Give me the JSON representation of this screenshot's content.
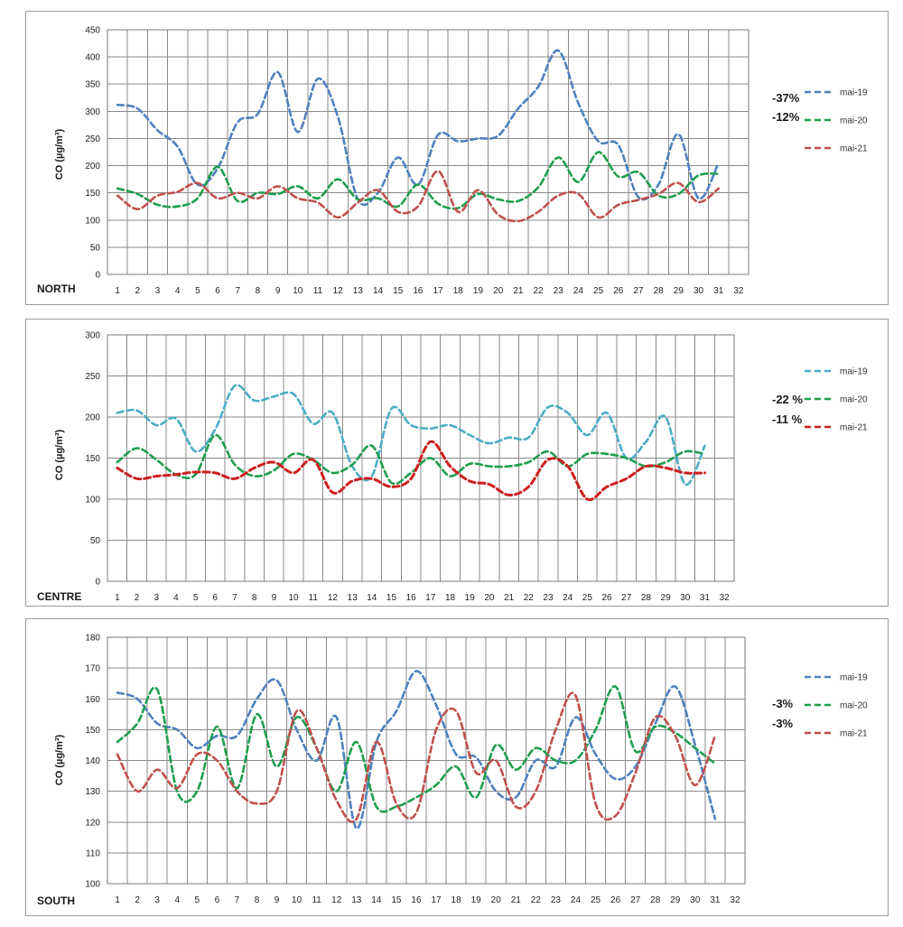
{
  "chart_data": [
    {
      "type": "line",
      "region_label": "NORTH",
      "ylabel": "CO (µg/m³)",
      "ylim": [
        0,
        450
      ],
      "yticks": [
        0,
        50,
        100,
        150,
        200,
        250,
        300,
        350,
        400,
        450
      ],
      "xticks": [
        "1",
        "2",
        "3",
        "4",
        "5",
        "6",
        "7",
        "8",
        "9",
        "10",
        "11",
        "12",
        "13",
        "14",
        "15",
        "16",
        "17",
        "18",
        "19",
        "20",
        "21",
        "22",
        "23",
        "24",
        "25",
        "26",
        "27",
        "28",
        "29",
        "30",
        "31",
        "32"
      ],
      "x": [
        1,
        2,
        3,
        4,
        5,
        6,
        7,
        8,
        9,
        10,
        11,
        12,
        13,
        14,
        15,
        16,
        17,
        18,
        19,
        20,
        21,
        22,
        23,
        24,
        25,
        26,
        27,
        28,
        29,
        30,
        31
      ],
      "legend": [
        "mai-19",
        "mai-20",
        "mai-21"
      ],
      "percent_annotations": [
        "-37%",
        "-12%"
      ],
      "series": [
        {
          "name": "mai-19",
          "color": "#4f81bd",
          "values": [
            312,
            305,
            265,
            235,
            165,
            195,
            280,
            295,
            372,
            262,
            360,
            290,
            138,
            150,
            215,
            165,
            257,
            245,
            250,
            255,
            305,
            345,
            412,
            315,
            245,
            238,
            142,
            165,
            258,
            140,
            205
          ]
        },
        {
          "name": "mai-20",
          "color": "#1f9e4f",
          "values": [
            158,
            148,
            128,
            125,
            140,
            198,
            135,
            150,
            148,
            162,
            140,
            175,
            138,
            140,
            125,
            165,
            130,
            122,
            148,
            138,
            135,
            160,
            215,
            170,
            225,
            180,
            188,
            145,
            148,
            182,
            185
          ]
        },
        {
          "name": "mai-21",
          "color": "#c0504d",
          "values": [
            145,
            120,
            145,
            152,
            168,
            140,
            150,
            140,
            162,
            140,
            132,
            105,
            132,
            155,
            115,
            125,
            190,
            115,
            155,
            110,
            98,
            115,
            145,
            148,
            105,
            128,
            137,
            148,
            168,
            133,
            158
          ]
        }
      ]
    },
    {
      "type": "line",
      "region_label": "CENTRE",
      "ylabel": "CO (µg/m³)",
      "ylim": [
        0,
        300
      ],
      "yticks": [
        0,
        50,
        100,
        150,
        200,
        250,
        300
      ],
      "xticks": [
        "1",
        "2",
        "3",
        "4",
        "5",
        "6",
        "7",
        "8",
        "9",
        "10",
        "11",
        "12",
        "13",
        "14",
        "15",
        "16",
        "17",
        "18",
        "19",
        "20",
        "21",
        "22",
        "23",
        "24",
        "25",
        "26",
        "27",
        "28",
        "29",
        "30",
        "31",
        "32"
      ],
      "x": [
        1,
        2,
        3,
        4,
        5,
        6,
        7,
        8,
        9,
        10,
        11,
        12,
        13,
        14,
        15,
        16,
        17,
        18,
        19,
        20,
        21,
        22,
        23,
        24,
        25,
        26,
        27,
        28,
        29,
        30,
        31
      ],
      "legend": [
        "mai-19",
        "mai-20",
        "mai-21"
      ],
      "percent_annotations": [
        "-22 %",
        "-11 %"
      ],
      "series": [
        {
          "name": "mai-19",
          "color": "#4bacc6",
          "values": [
            205,
            208,
            190,
            198,
            158,
            185,
            238,
            220,
            225,
            228,
            192,
            205,
            140,
            128,
            210,
            190,
            186,
            190,
            178,
            168,
            175,
            175,
            212,
            205,
            178,
            205,
            150,
            170,
            200,
            118,
            165
          ]
        },
        {
          "name": "mai-20",
          "color": "#1f9e4f",
          "values": [
            145,
            162,
            148,
            130,
            130,
            178,
            142,
            128,
            135,
            155,
            148,
            132,
            142,
            165,
            120,
            132,
            150,
            128,
            143,
            140,
            140,
            145,
            158,
            140,
            155,
            155,
            150,
            140,
            145,
            158,
            155
          ]
        },
        {
          "name": "mai-21",
          "color": "#cc1f1f",
          "values": [
            138,
            125,
            128,
            130,
            133,
            132,
            125,
            138,
            145,
            132,
            148,
            108,
            122,
            125,
            115,
            125,
            170,
            140,
            122,
            118,
            105,
            115,
            148,
            140,
            100,
            115,
            125,
            140,
            138,
            132,
            132
          ]
        }
      ]
    },
    {
      "type": "line",
      "region_label": "SOUTH",
      "ylabel": "CO (µg/m³)",
      "ylim": [
        100,
        180
      ],
      "yticks": [
        100,
        110,
        120,
        130,
        140,
        150,
        160,
        170,
        180
      ],
      "xticks": [
        "1",
        "2",
        "3",
        "4",
        "5",
        "6",
        "7",
        "8",
        "9",
        "10",
        "11",
        "12",
        "13",
        "14",
        "15",
        "16",
        "17",
        "18",
        "19",
        "20",
        "21",
        "22",
        "23",
        "24",
        "25",
        "26",
        "27",
        "28",
        "29",
        "30",
        "31",
        "32"
      ],
      "x": [
        1,
        2,
        3,
        4,
        5,
        6,
        7,
        8,
        9,
        10,
        11,
        12,
        13,
        14,
        15,
        16,
        17,
        18,
        19,
        20,
        21,
        22,
        23,
        24,
        25,
        26,
        27,
        28,
        29,
        30,
        31
      ],
      "legend": [
        "mai-19",
        "mai-20",
        "mai-21"
      ],
      "percent_annotations": [
        "-3%",
        "-3%"
      ],
      "series": [
        {
          "name": "mai-19",
          "color": "#4f81bd",
          "values": [
            162,
            160,
            152,
            150,
            144,
            148,
            148,
            160,
            166,
            150,
            140,
            154,
            118,
            146,
            156,
            169,
            158,
            142,
            141,
            130,
            128,
            140,
            138,
            154,
            142,
            134,
            138,
            152,
            164,
            145,
            121
          ]
        },
        {
          "name": "mai-20",
          "color": "#1f9e4f",
          "values": [
            146,
            152,
            163,
            130,
            130,
            151,
            131,
            155,
            138,
            154,
            144,
            130,
            146,
            125,
            125,
            128,
            132,
            138,
            128,
            145,
            137,
            144,
            140,
            140,
            150,
            164,
            143,
            151,
            149,
            144,
            139
          ]
        },
        {
          "name": "mai-21",
          "color": "#c0504d",
          "values": [
            142,
            130,
            137,
            131,
            142,
            140,
            130,
            126,
            130,
            156,
            144,
            127,
            121,
            146,
            126,
            123,
            150,
            156,
            136,
            140,
            125,
            130,
            150,
            161,
            126,
            122,
            136,
            154,
            148,
            132,
            148
          ]
        }
      ]
    }
  ]
}
